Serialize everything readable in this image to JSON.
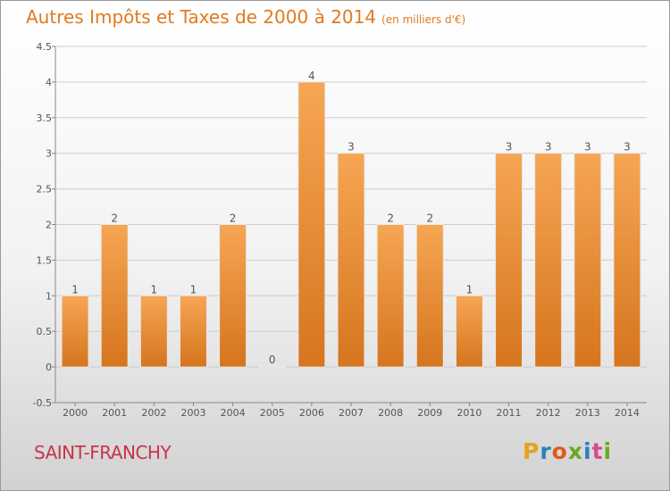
{
  "header": {
    "title": "Autres Impôts et Taxes de 2000 à 2014",
    "unit": "(en milliers d'€)"
  },
  "footer": {
    "commune": "SAINT-FRANCHY",
    "brand": "Proxiti"
  },
  "colors": {
    "bar_top": "#f6a654",
    "bar_bottom": "#d6751e",
    "title": "#e07a1f",
    "commune": "#c8344a",
    "grid": "#cccccc"
  },
  "chart_data": {
    "type": "bar",
    "title": "Autres Impôts et Taxes de 2000 à 2014",
    "subtitle": "(en milliers d'€)",
    "categories": [
      "2000",
      "2001",
      "2002",
      "2003",
      "2004",
      "2005",
      "2006",
      "2007",
      "2008",
      "2009",
      "2010",
      "2011",
      "2012",
      "2013",
      "2014"
    ],
    "values": [
      1,
      2,
      1,
      1,
      2,
      0,
      4,
      3,
      2,
      2,
      1,
      3,
      3,
      3,
      3
    ],
    "ylim": [
      -0.5,
      4.5
    ],
    "yticks": [
      -0.5,
      0,
      0.5,
      1,
      1.5,
      2,
      2.5,
      3,
      3.5,
      4,
      4.5
    ],
    "ytick_labels": [
      "-0.5",
      "0",
      "0.5",
      "1",
      "1.5",
      "2",
      "2.5",
      "3",
      "3.5",
      "4",
      "4.5"
    ],
    "grid": true,
    "grid_axis": "y",
    "legend": false
  }
}
